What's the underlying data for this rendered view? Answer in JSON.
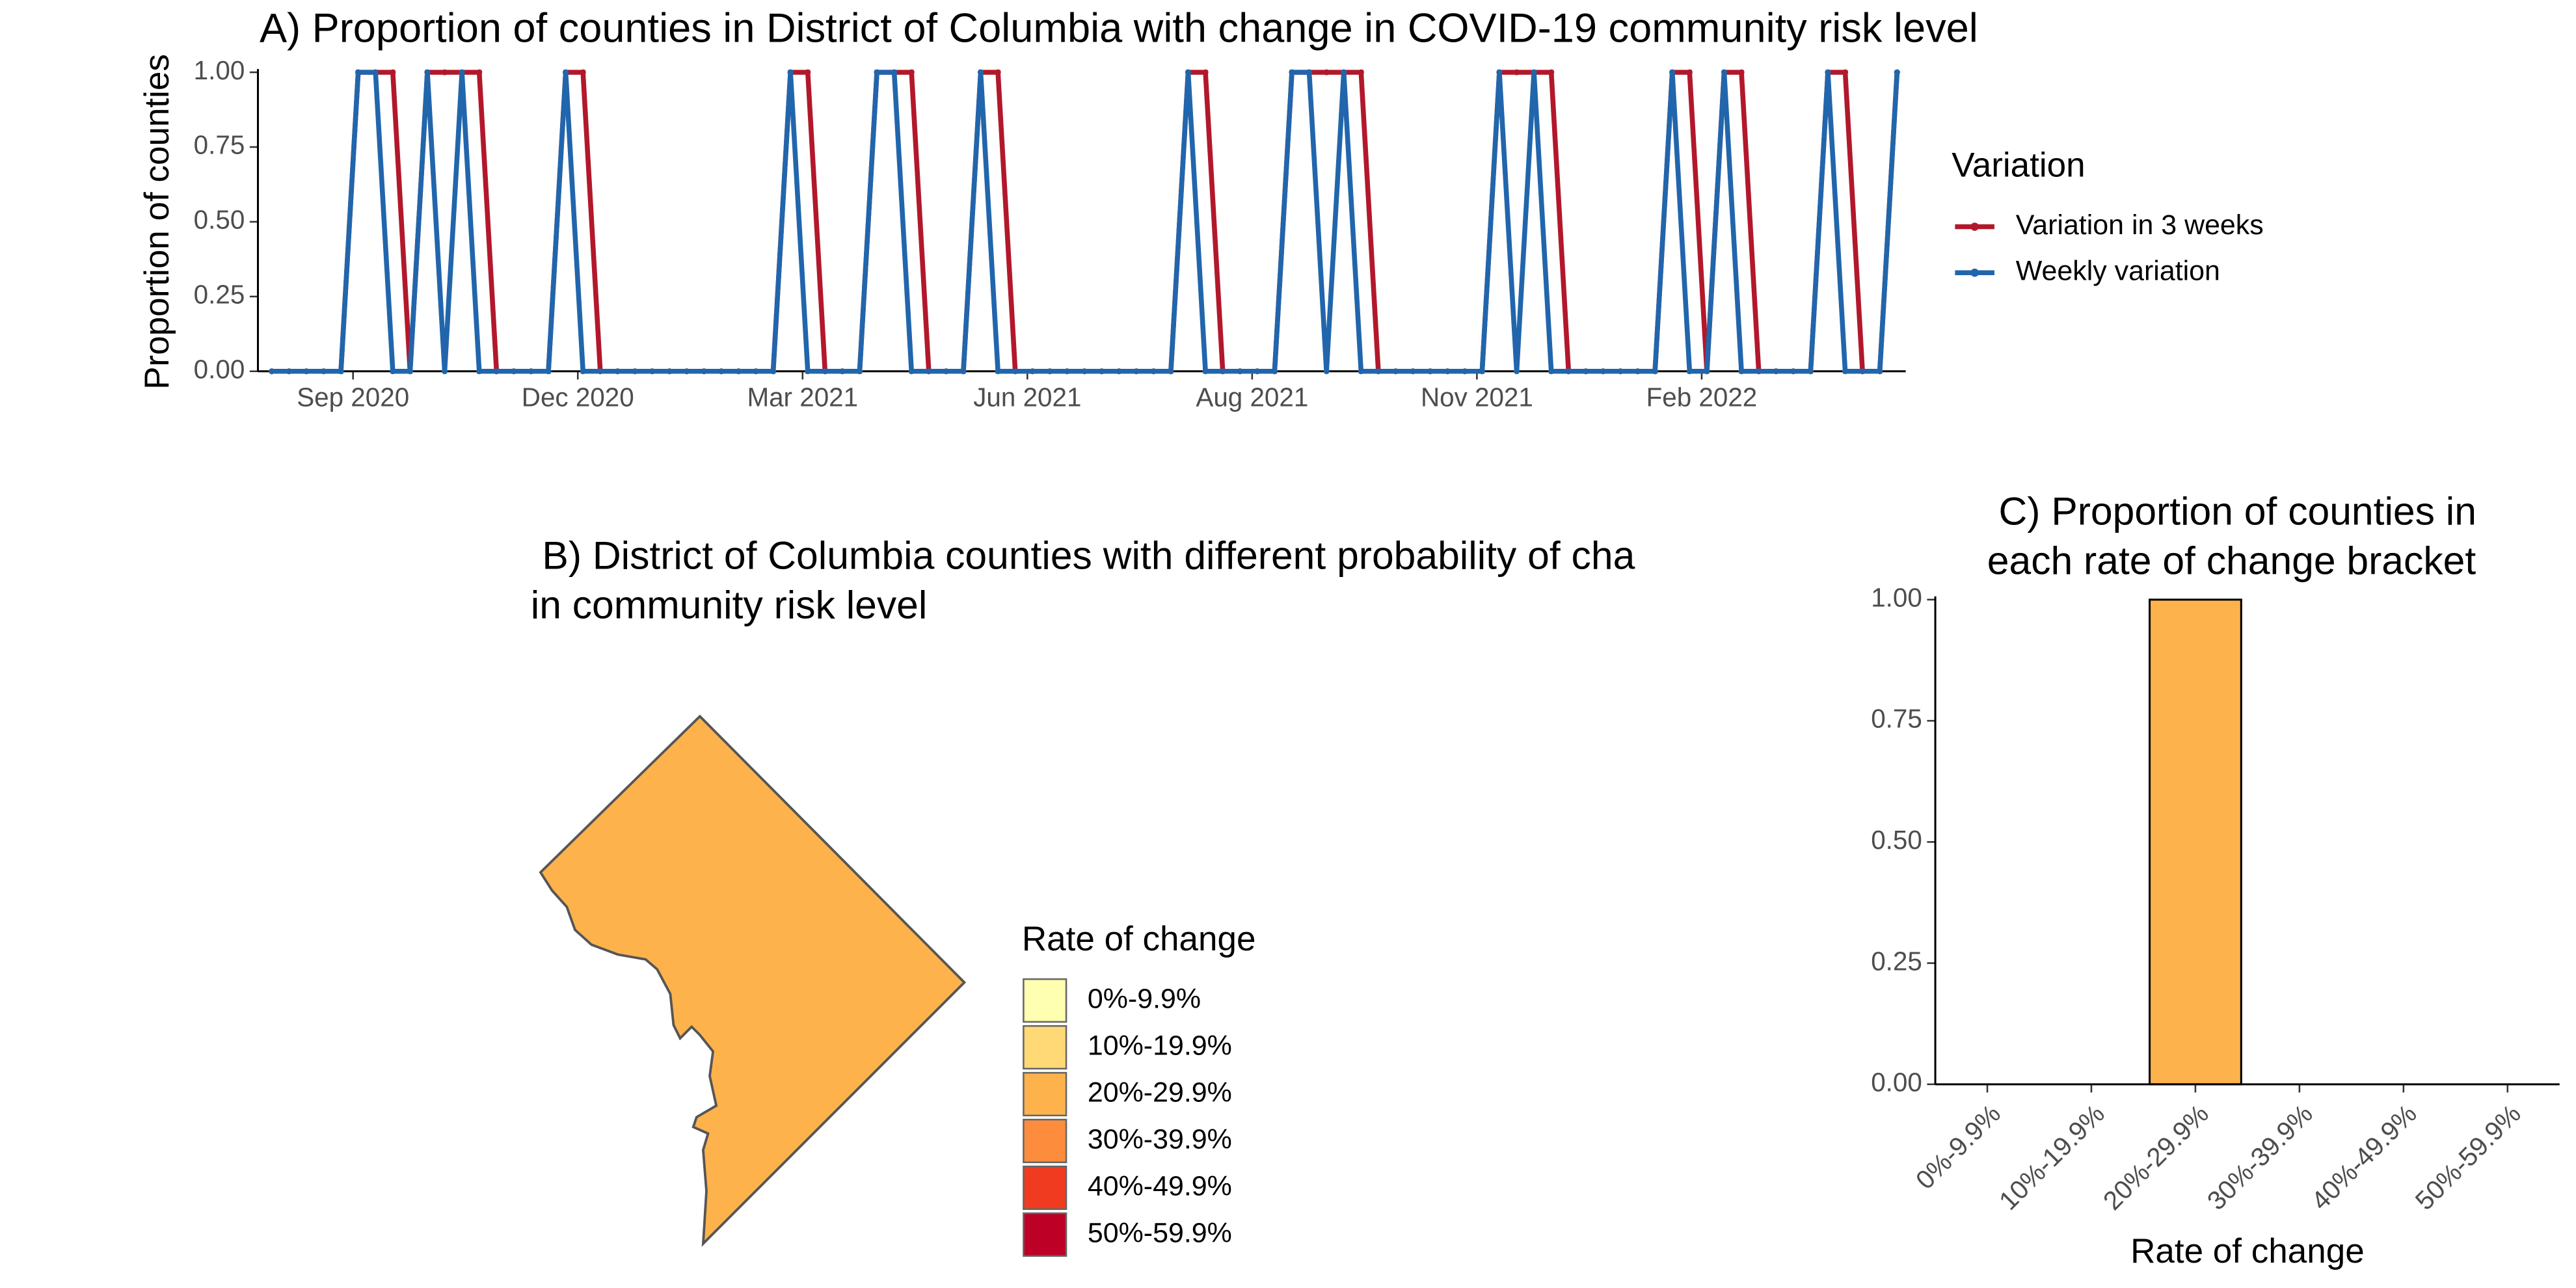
{
  "chart_data": [
    {
      "type": "line",
      "title": "A) Proportion of counties in District of Columbia with change in COVID-19 community risk level",
      "ylabel": "Proportion of counties",
      "legend_title": "Variation",
      "legend": "right",
      "x": [
        0,
        1,
        2,
        3,
        4,
        5,
        6,
        7,
        8,
        9,
        10,
        11,
        12,
        13,
        14,
        15,
        16,
        17,
        18,
        19,
        20,
        21,
        22,
        23,
        24,
        25,
        26,
        27,
        28,
        29,
        30,
        31,
        32,
        33,
        34,
        35,
        36,
        37,
        38,
        39,
        40,
        41,
        42,
        43,
        44,
        45,
        46,
        47,
        48,
        49,
        50,
        51,
        52,
        53,
        54,
        55,
        56,
        57,
        58,
        59,
        60,
        61,
        62,
        63,
        64,
        65,
        66,
        67,
        68,
        69,
        70,
        71,
        72,
        73,
        74,
        75,
        76,
        77,
        78,
        79,
        80,
        81,
        82,
        83,
        84,
        85,
        86,
        87,
        88,
        89,
        90,
        91,
        92,
        93,
        94
      ],
      "xlim": [
        -0.8,
        94.5
      ],
      "xticks": [
        {
          "value": 4.7,
          "label": "Sep 2020"
        },
        {
          "value": 17.7,
          "label": "Dec 2020"
        },
        {
          "value": 30.7,
          "label": "Mar 2021"
        },
        {
          "value": 43.7,
          "label": "Jun 2021"
        },
        {
          "value": 56.7,
          "label": "Aug 2021"
        },
        {
          "value": 69.7,
          "label": "Nov 2021"
        },
        {
          "value": 82.7,
          "label": "Feb 2022"
        }
      ],
      "ylim": [
        0,
        1
      ],
      "yticks": [
        {
          "value": 0,
          "label": "0.00"
        },
        {
          "value": 0.25,
          "label": "0.25"
        },
        {
          "value": 0.5,
          "label": "0.50"
        },
        {
          "value": 0.75,
          "label": "0.75"
        },
        {
          "value": 1,
          "label": "1.00"
        }
      ],
      "series": [
        {
          "name": "Variation in 3 weeks",
          "color": "#b2182b",
          "values": [
            0,
            0,
            0,
            0,
            0,
            1,
            1,
            1,
            0,
            1,
            1,
            1,
            1,
            0,
            0,
            0,
            0,
            1,
            1,
            0,
            0,
            0,
            0,
            0,
            0,
            0,
            0,
            0,
            0,
            0,
            1,
            1,
            0,
            0,
            0,
            1,
            1,
            1,
            0,
            0,
            0,
            1,
            1,
            0,
            0,
            0,
            0,
            0,
            0,
            0,
            0,
            0,
            0,
            1,
            1,
            0,
            0,
            0,
            0,
            1,
            1,
            1,
            1,
            1,
            0,
            0,
            0,
            0,
            0,
            0,
            0,
            1,
            1,
            1,
            1,
            0,
            0,
            0,
            0,
            0,
            0,
            1,
            1,
            0,
            1,
            1,
            0,
            0,
            0,
            0,
            1,
            1,
            0,
            0,
            1
          ]
        },
        {
          "name": "Weekly variation",
          "color": "#2166ac",
          "values": [
            0,
            0,
            0,
            0,
            0,
            1,
            1,
            0,
            0,
            1,
            0,
            1,
            0,
            0,
            0,
            0,
            0,
            1,
            0,
            0,
            0,
            0,
            0,
            0,
            0,
            0,
            0,
            0,
            0,
            0,
            1,
            0,
            0,
            0,
            0,
            1,
            1,
            0,
            0,
            0,
            0,
            1,
            0,
            0,
            0,
            0,
            0,
            0,
            0,
            0,
            0,
            0,
            0,
            1,
            0,
            0,
            0,
            0,
            0,
            1,
            1,
            0,
            1,
            0,
            0,
            0,
            0,
            0,
            0,
            0,
            0,
            1,
            0,
            1,
            0,
            0,
            0,
            0,
            0,
            0,
            0,
            1,
            0,
            0,
            1,
            0,
            0,
            0,
            0,
            0,
            1,
            0,
            0,
            0,
            1
          ]
        }
      ]
    },
    {
      "type": "map",
      "title_lines": [
        "B)  District of Columbia counties with different probability of cha",
        "in community risk level"
      ],
      "region_color": "#feb24c",
      "legend_title": "Rate of change",
      "legend_labels": [
        "0%-9.9%",
        "10%-19.9%",
        "20%-29.9%",
        "30%-39.9%",
        "40%-49.9%",
        "50%-59.9%"
      ],
      "legend_colors": [
        "#ffffb2",
        "#fed976",
        "#feb24c",
        "#fd8d3c",
        "#f03b20",
        "#bd0026"
      ]
    },
    {
      "type": "bar",
      "title_lines": [
        "C) Proportion of counties in",
        " each rate of change bracket"
      ],
      "xlabel": "Rate of change",
      "categories": [
        "0%-9.9%",
        "10%-19.9%",
        "20%-29.9%",
        "30%-39.9%",
        "40%-49.9%",
        "50%-59.9%"
      ],
      "values": [
        0,
        0,
        1,
        0,
        0,
        0
      ],
      "color": "#feb24c",
      "ylim": [
        0,
        1
      ],
      "yticks": [
        {
          "value": 0,
          "label": "0.00"
        },
        {
          "value": 0.25,
          "label": "0.25"
        },
        {
          "value": 0.5,
          "label": "0.50"
        },
        {
          "value": 0.75,
          "label": "0.75"
        },
        {
          "value": 1,
          "label": "1.00"
        }
      ]
    }
  ]
}
